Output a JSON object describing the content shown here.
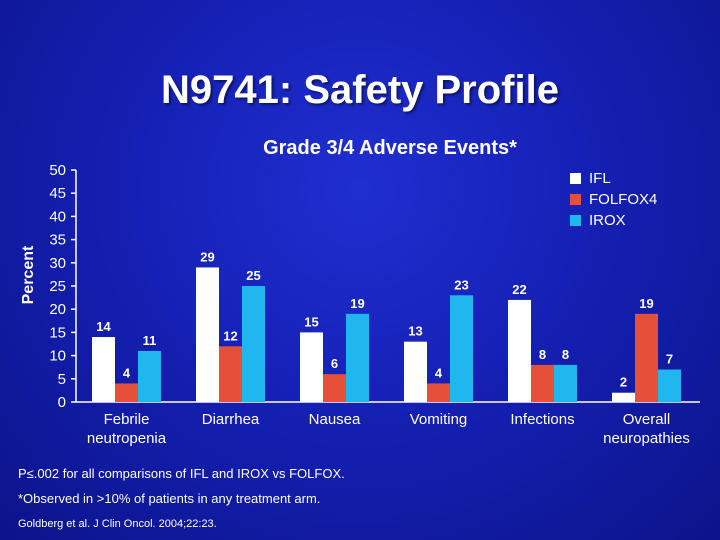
{
  "title": "N9741: Safety Profile",
  "footnotes": {
    "p_value": "P≤.002 for all comparisons of IFL and IROX vs FOLFOX.",
    "observed": "*Observed in >10% of patients in any treatment arm.",
    "reference": "Goldberg et al. J Clin Oncol. 2004;22:23."
  },
  "chart_data": {
    "type": "bar",
    "title": "Grade 3/4 Adverse Events*",
    "ylabel": "Percent",
    "xlabel": "",
    "ylim": [
      0,
      50
    ],
    "yticks": [
      0,
      5,
      10,
      15,
      20,
      25,
      30,
      35,
      40,
      45,
      50
    ],
    "categories": [
      "Febrile\nneutropenia",
      "Diarrhea",
      "Nausea",
      "Vomiting",
      "Infections",
      "Overall\nneuropathies"
    ],
    "series": [
      {
        "name": "IFL",
        "color": "#ffffff",
        "values": [
          14,
          29,
          15,
          13,
          22,
          2
        ]
      },
      {
        "name": "FOLFOX4",
        "color": "#e5503a",
        "values": [
          4,
          12,
          6,
          4,
          8,
          19
        ]
      },
      {
        "name": "IROX",
        "color": "#22b6ef",
        "values": [
          11,
          25,
          19,
          23,
          8,
          7
        ]
      }
    ],
    "legend_position": "top-right",
    "grid": false
  }
}
